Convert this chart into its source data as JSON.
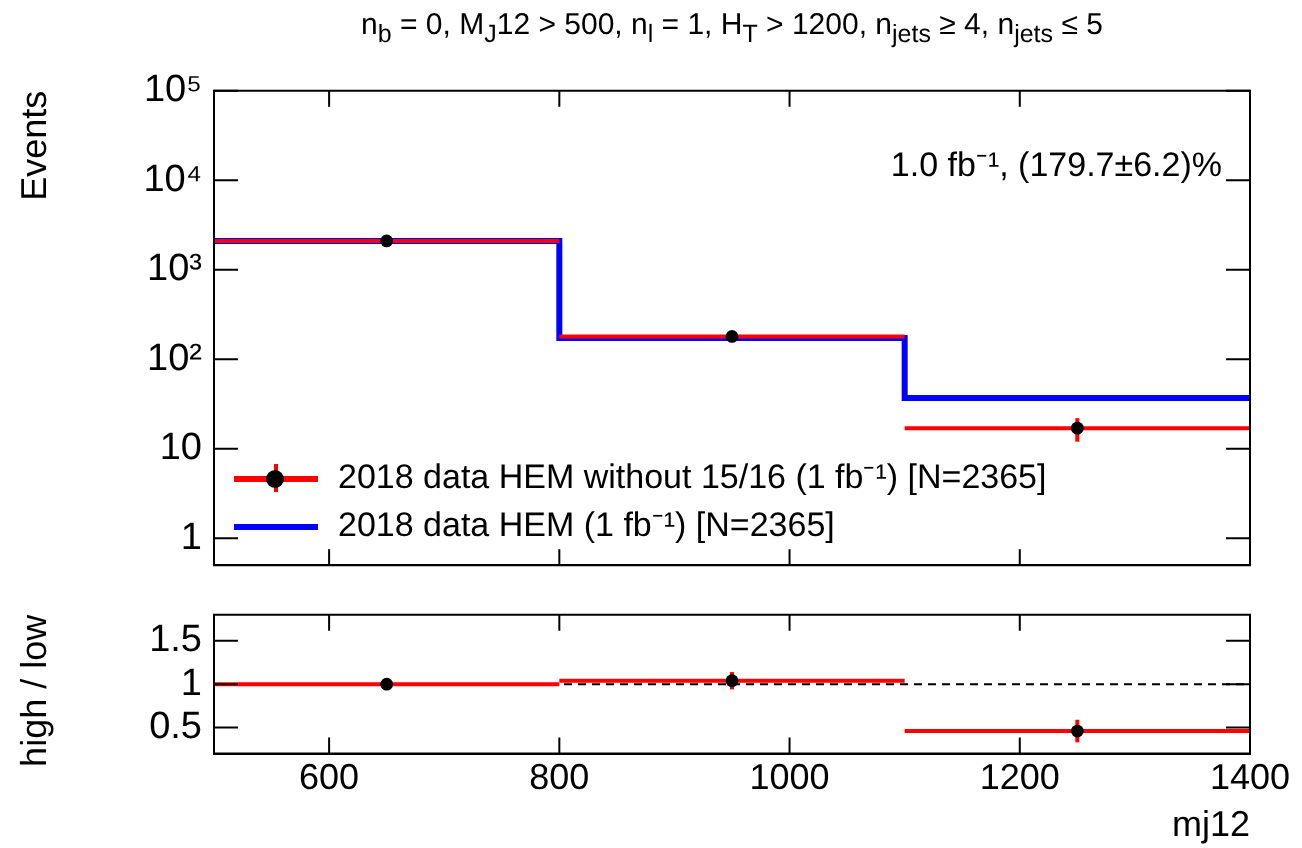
{
  "chart_data": [
    {
      "type": "step",
      "title": "n$_{b}$ = 0,  M$_{J}$12 > 500, n$_{l}$ = 1, H$_{T}$ > 1200, n$_{jets}$ ≥ 4, n$_{jets}$ ≤ 5",
      "ylabel": "Events",
      "annotations": [
        "1.0 fb⁻¹, (179.7±6.2)%"
      ],
      "series": [
        {
          "name": "2018 data HEM without 15/16 (1 fb⁻¹) [N=2365]",
          "type": "scatter",
          "marker": "circle",
          "color": "#000000",
          "x": [
            650,
            950,
            1250
          ],
          "values": [
            2100,
            180,
            17
          ],
          "errors": [
            null,
            null,
            5
          ],
          "xerrors": [
            150,
            150,
            150
          ]
        },
        {
          "name": "2018 data HEM (1 fb⁻¹) [N=2365]",
          "color": "#0000ff",
          "x": [
            500,
            800,
            1100,
            1400
          ],
          "values": [
            2100,
            173,
            37,
            37
          ]
        }
      ],
      "log": "y",
      "xlim": [
        500,
        1400
      ],
      "xticks": [
        600,
        800,
        1000,
        1200,
        1400
      ],
      "ylim": [
        0.5,
        100000
      ],
      "yticks": [
        1,
        10,
        {
          "value": 100,
          "label": "10²"
        },
        {
          "value": 1000,
          "label": "10³"
        },
        {
          "value": 10000,
          "label": "10⁴"
        },
        {
          "value": 100000,
          "label": "10⁵"
        }
      ],
      "tick_labels": "y",
      "grid": false,
      "legend": "bottom left"
    },
    {
      "type": "scatter",
      "xlabel": "mj12",
      "ylabel": "high / low",
      "series": [
        {
          "color": "#000000",
          "x": [
            650,
            950,
            1250
          ],
          "values": [
            1.0,
            1.04,
            0.46
          ],
          "errors": [
            null,
            0.1,
            0.13
          ],
          "xerrors": [
            150,
            150,
            150
          ]
        }
      ],
      "xlim": [
        500,
        1400
      ],
      "xticks": [
        600,
        800,
        1000,
        1200,
        1400
      ],
      "ylim": [
        0.2,
        1.8
      ],
      "yticks": [
        0.5,
        1,
        1.5
      ],
      "ref_lines": [
        {
          "axis": "y",
          "value": 1,
          "color": "#000000",
          "line_style": "dashed"
        }
      ],
      "grid": false,
      "marker": "circle"
    }
  ]
}
